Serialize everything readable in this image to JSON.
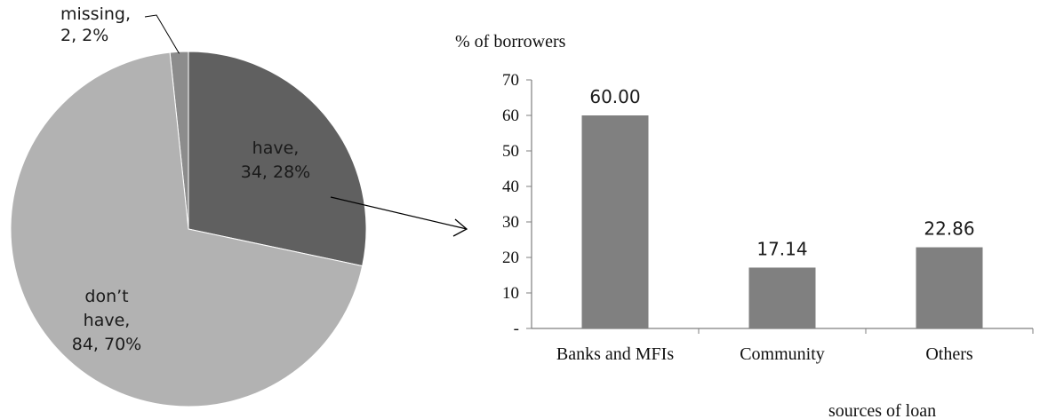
{
  "chart_data": [
    {
      "type": "pie",
      "slices": [
        {
          "name": "missing",
          "value": 2,
          "percent": 2,
          "label_lines": [
            "missing,",
            "2, 2%"
          ],
          "color": "#8c8c8c"
        },
        {
          "name": "have",
          "value": 34,
          "percent": 28,
          "label_lines": [
            "have,",
            "34, 28%"
          ],
          "color": "#606060"
        },
        {
          "name": "don’t have",
          "value": 84,
          "percent": 70,
          "label_lines": [
            "don’t",
            "have,",
            "84, 70%"
          ],
          "color": "#b2b2b2"
        }
      ]
    },
    {
      "type": "bar",
      "ylabel": "% of borrowers",
      "xlabel": "sources of loan",
      "categories": [
        "Banks and MFIs",
        "Community",
        "Others"
      ],
      "values": [
        60.0,
        17.14,
        22.86
      ],
      "value_labels": [
        "60.00",
        "17.14",
        "22.86"
      ],
      "ylim": [
        0,
        70
      ],
      "yticks": [
        0,
        10,
        20,
        30,
        40,
        50,
        60,
        70
      ],
      "ytick_labels": [
        "-",
        "10",
        "20",
        "30",
        "40",
        "50",
        "60",
        "70"
      ],
      "grid": false,
      "bar_color": "#808080"
    }
  ]
}
